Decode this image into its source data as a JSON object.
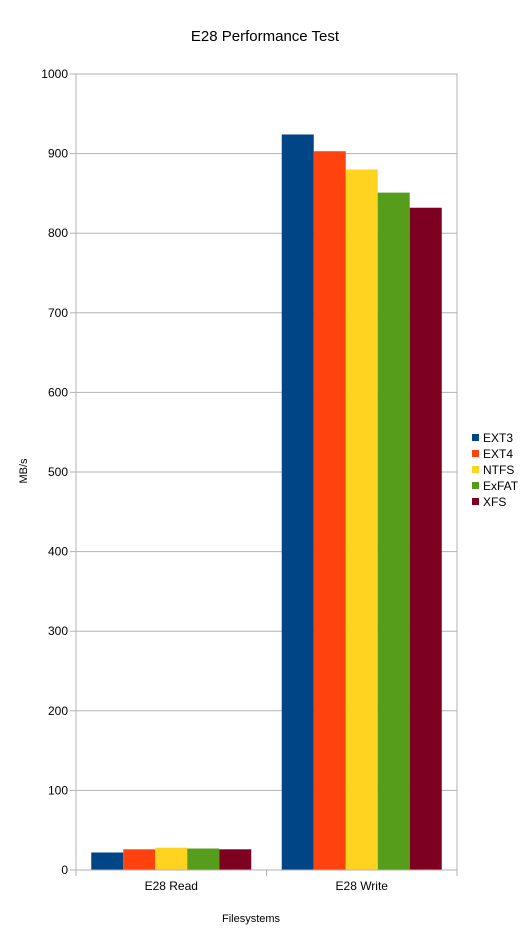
{
  "chart_data": {
    "type": "bar",
    "title": "E28 Performance Test",
    "xlabel": "Filesystems",
    "ylabel": "MB/s",
    "categories": [
      "E28 Read",
      "E28 Write"
    ],
    "series": [
      {
        "name": "EXT3",
        "color": "#004586",
        "values": [
          22,
          924
        ]
      },
      {
        "name": "EXT4",
        "color": "#ff420e",
        "values": [
          26,
          903
        ]
      },
      {
        "name": "NTFS",
        "color": "#ffd320",
        "values": [
          28,
          880
        ]
      },
      {
        "name": "ExFAT",
        "color": "#579d1c",
        "values": [
          27,
          851
        ]
      },
      {
        "name": "XFS",
        "color": "#7e0021",
        "values": [
          26,
          832
        ]
      }
    ],
    "ylim": [
      0,
      1000
    ],
    "yticks": [
      0,
      100,
      200,
      300,
      400,
      500,
      600,
      700,
      800,
      900,
      1000
    ],
    "grid": true,
    "legend": "right"
  }
}
